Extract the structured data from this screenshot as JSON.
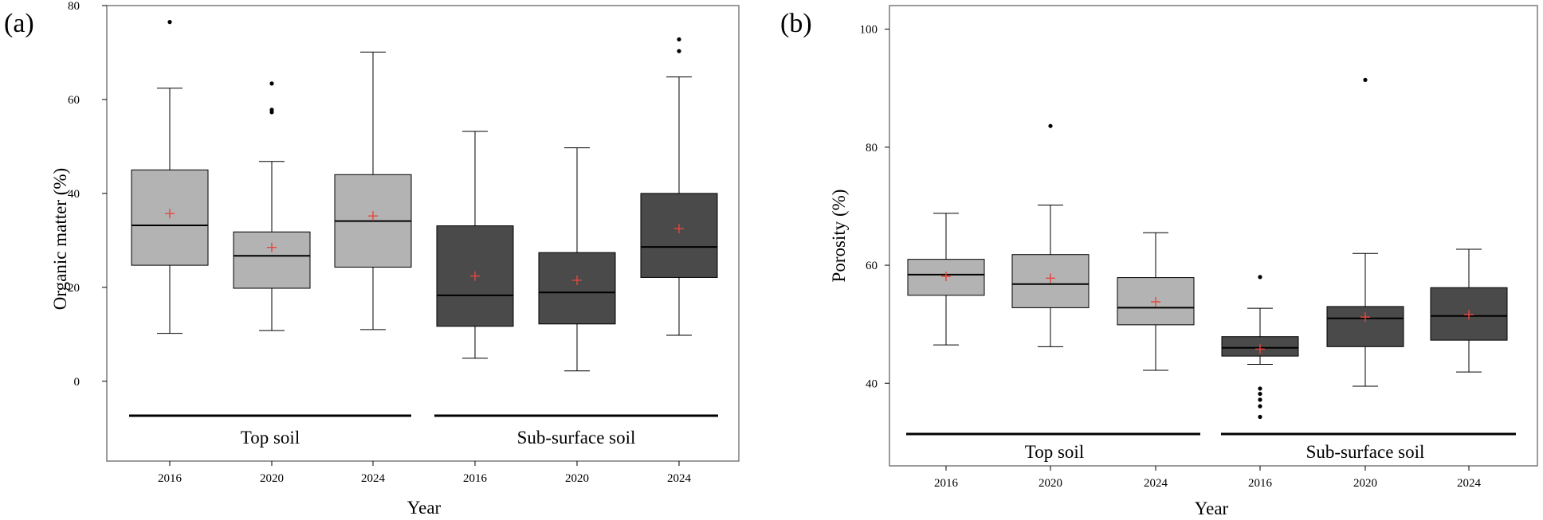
{
  "colors": {
    "top_soil_box": "#b3b3b3",
    "subsurface_box": "#4a4a4a",
    "mean_marker": "#e8453c",
    "frame": "#7a7a7a"
  },
  "chart_data": [
    {
      "type": "boxplot",
      "panel_label": "(a)",
      "xlabel": "Year",
      "ylabel": "Organic matter (%)",
      "ylim": [
        -17,
        80
      ],
      "yticks": [
        0,
        20,
        40,
        60,
        80
      ],
      "grid": false,
      "groups": [
        "Top soil",
        "Sub-surface soil"
      ],
      "categories": [
        "2016",
        "2020",
        "2024",
        "2016",
        "2020",
        "2024"
      ],
      "boxes": [
        {
          "group": "Top soil",
          "year": "2016",
          "min": 10.2,
          "q1": 24.7,
          "median": 33.2,
          "q3": 45.0,
          "max": 62.4,
          "mean": 35.7,
          "outliers": [
            76.5
          ]
        },
        {
          "group": "Top soil",
          "year": "2020",
          "min": 10.8,
          "q1": 19.8,
          "median": 26.7,
          "q3": 31.8,
          "max": 46.8,
          "mean": 28.5,
          "outliers": [
            57.3,
            57.8,
            63.4
          ]
        },
        {
          "group": "Top soil",
          "year": "2024",
          "min": 11.0,
          "q1": 24.3,
          "median": 34.1,
          "q3": 44.0,
          "max": 70.1,
          "mean": 35.2,
          "outliers": []
        },
        {
          "group": "Sub-surface soil",
          "year": "2016",
          "min": 4.9,
          "q1": 11.7,
          "median": 18.3,
          "q3": 33.1,
          "max": 53.2,
          "mean": 22.4,
          "outliers": []
        },
        {
          "group": "Sub-surface soil",
          "year": "2020",
          "min": 2.2,
          "q1": 12.2,
          "median": 18.9,
          "q3": 27.4,
          "max": 49.7,
          "mean": 21.5,
          "outliers": []
        },
        {
          "group": "Sub-surface soil",
          "year": "2024",
          "min": 9.8,
          "q1": 22.1,
          "median": 28.6,
          "q3": 40.0,
          "max": 64.8,
          "mean": 32.5,
          "outliers": [
            70.3,
            72.8
          ]
        }
      ]
    },
    {
      "type": "boxplot",
      "panel_label": "(b)",
      "xlabel": "Year",
      "ylabel": "Porosity (%)",
      "ylim": [
        26,
        104
      ],
      "yticks": [
        40,
        60,
        80,
        100
      ],
      "grid": false,
      "groups": [
        "Top soil",
        "Sub-surface soil"
      ],
      "categories": [
        "2016",
        "2020",
        "2024",
        "2016",
        "2020",
        "2024"
      ],
      "boxes": [
        {
          "group": "Top soil",
          "year": "2016",
          "min": 46.5,
          "q1": 54.9,
          "median": 58.4,
          "q3": 61.0,
          "max": 68.8,
          "mean": 58.1,
          "outliers": []
        },
        {
          "group": "Top soil",
          "year": "2020",
          "min": 46.2,
          "q1": 52.8,
          "median": 56.8,
          "q3": 61.8,
          "max": 70.2,
          "mean": 57.8,
          "outliers": [
            83.6
          ]
        },
        {
          "group": "Top soil",
          "year": "2024",
          "min": 42.2,
          "q1": 49.9,
          "median": 52.8,
          "q3": 57.9,
          "max": 65.5,
          "mean": 53.8,
          "outliers": []
        },
        {
          "group": "Sub-surface soil",
          "year": "2016",
          "min": 43.2,
          "q1": 44.6,
          "median": 46.0,
          "q3": 47.9,
          "max": 52.7,
          "mean": 45.8,
          "outliers": [
            34.3,
            36.1,
            37.2,
            38.2,
            39.1,
            58.0
          ]
        },
        {
          "group": "Sub-surface soil",
          "year": "2020",
          "min": 39.5,
          "q1": 46.2,
          "median": 51.0,
          "q3": 53.0,
          "max": 62.0,
          "mean": 51.2,
          "outliers": [
            91.4
          ]
        },
        {
          "group": "Sub-surface soil",
          "year": "2024",
          "min": 41.9,
          "q1": 47.3,
          "median": 51.4,
          "q3": 56.2,
          "max": 62.7,
          "mean": 51.6,
          "outliers": []
        }
      ]
    }
  ]
}
